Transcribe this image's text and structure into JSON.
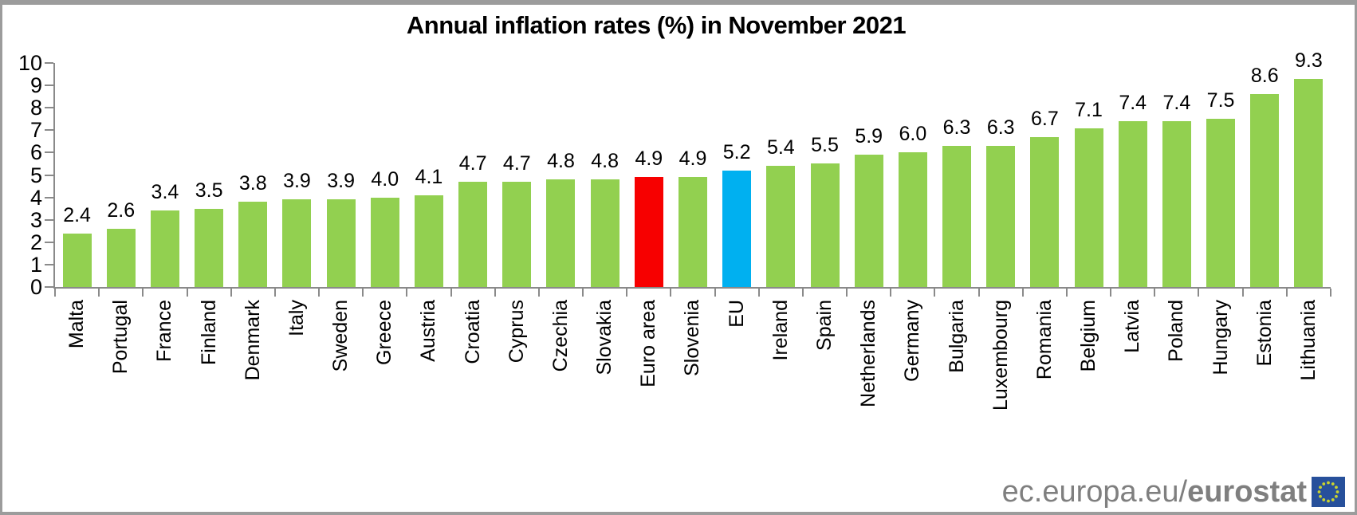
{
  "title": "Annual inflation rates (%) in November 2021",
  "chart_data": {
    "type": "bar",
    "categories": [
      "Malta",
      "Portugal",
      "France",
      "Finland",
      "Denmark",
      "Italy",
      "Sweden",
      "Greece",
      "Austria",
      "Croatia",
      "Cyprus",
      "Czechia",
      "Slovakia",
      "Euro area",
      "Slovenia",
      "EU",
      "Ireland",
      "Spain",
      "Netherlands",
      "Germany",
      "Bulgaria",
      "Luxembourg",
      "Romania",
      "Belgium",
      "Latvia",
      "Poland",
      "Hungary",
      "Estonia",
      "Lithuania"
    ],
    "values": [
      2.4,
      2.6,
      3.4,
      3.5,
      3.8,
      3.9,
      3.9,
      4.0,
      4.1,
      4.7,
      4.7,
      4.8,
      4.8,
      4.9,
      4.9,
      5.2,
      5.4,
      5.5,
      5.9,
      6.0,
      6.3,
      6.3,
      6.7,
      7.1,
      7.4,
      7.4,
      7.5,
      8.6,
      9.3
    ],
    "title": "Annual inflation rates (%) in November 2021",
    "xlabel": "",
    "ylabel": "",
    "ylim": [
      0,
      10
    ],
    "ytick_step": 1,
    "grid": false,
    "value_labels_shown": true,
    "legend": "none",
    "default_bar_color": "#92d050",
    "highlights": [
      {
        "category": "Euro area",
        "color": "#f70000"
      },
      {
        "category": "EU",
        "color": "#00b0f0"
      }
    ]
  },
  "footer": {
    "logo_prefix": "ec.europa.eu/",
    "logo_bold": "eurostat"
  },
  "colors": {
    "axis": "#8a8a8a",
    "frame_border": "#9c9c9c",
    "text": "#000000",
    "logo_text": "#7f7f7f",
    "flag_blue": "#27509b",
    "flag_stars": "#c9d230"
  }
}
